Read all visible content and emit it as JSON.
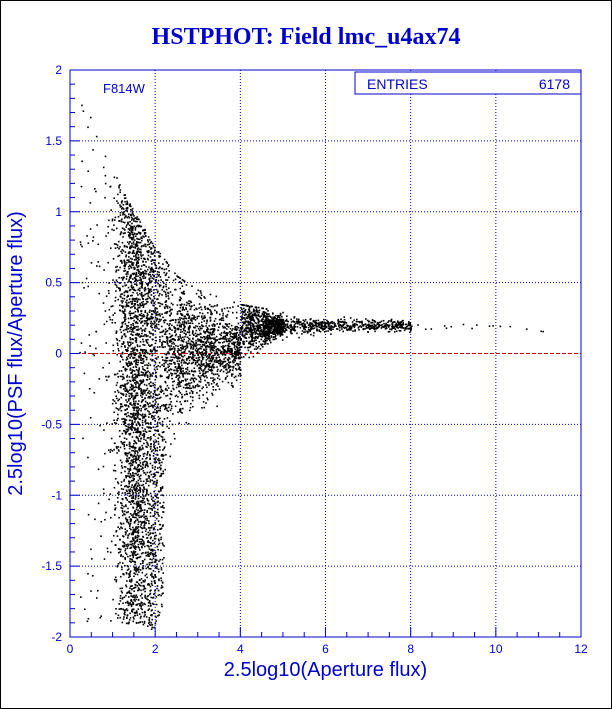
{
  "page": {
    "title": "HSTPHOT: Field lmc_u4ax74",
    "title_color": "#0000cc",
    "frame_color": "#000000"
  },
  "chart_data": {
    "type": "scatter",
    "title": "HSTPHOT: Field lmc_u4ax74",
    "xlabel": "2.5log10(Aperture flux)",
    "ylabel": "2.5log10(PSF flux/Aperture flux)",
    "xlim": [
      0,
      12
    ],
    "ylim": [
      -2,
      2
    ],
    "xticks": [
      0,
      2,
      4,
      6,
      8,
      10,
      12
    ],
    "yticks": [
      -2,
      -1.5,
      -1,
      -0.5,
      0,
      0.5,
      1,
      1.5,
      2
    ],
    "xtick_labels": [
      "0",
      "2",
      "4",
      "6",
      "8",
      "10",
      "12"
    ],
    "ytick_labels": [
      "-2",
      "-1.5",
      "-1",
      "-0.5",
      "0",
      "0.5",
      "1",
      "1.5",
      "2"
    ],
    "grid": true,
    "annotation": "F814W",
    "stats_box": {
      "label": "ENTRIES",
      "value": "6178"
    },
    "reference_line": {
      "y": 0
    },
    "n_entries": 6178,
    "colors": {
      "axis": "#0000cc",
      "grid": "#0000cc",
      "points": "#000000",
      "reference_line": "#cc0000"
    },
    "distribution_envelope": [
      {
        "x": 0.2,
        "y_low": -1.9,
        "y_high": 1.8
      },
      {
        "x": 0.5,
        "y_low": -1.9,
        "y_high": 1.7
      },
      {
        "x": 1.0,
        "y_low": -1.9,
        "y_high": 1.3
      },
      {
        "x": 1.5,
        "y_low": -1.9,
        "y_high": 1.0
      },
      {
        "x": 2.0,
        "y_low": -1.95,
        "y_high": 0.75
      },
      {
        "x": 2.5,
        "y_low": -1.5,
        "y_high": 0.55
      },
      {
        "x": 3.0,
        "y_low": -1.0,
        "y_high": 0.45
      },
      {
        "x": 4.0,
        "y_low": -0.45,
        "y_high": 0.35
      },
      {
        "x": 5.0,
        "y_low": 0.05,
        "y_high": 0.3
      },
      {
        "x": 6.0,
        "y_low": 0.1,
        "y_high": 0.28
      },
      {
        "x": 8.0,
        "y_low": 0.15,
        "y_high": 0.3
      },
      {
        "x": 11.1,
        "y_low": 0.13,
        "y_high": 0.16
      }
    ]
  }
}
